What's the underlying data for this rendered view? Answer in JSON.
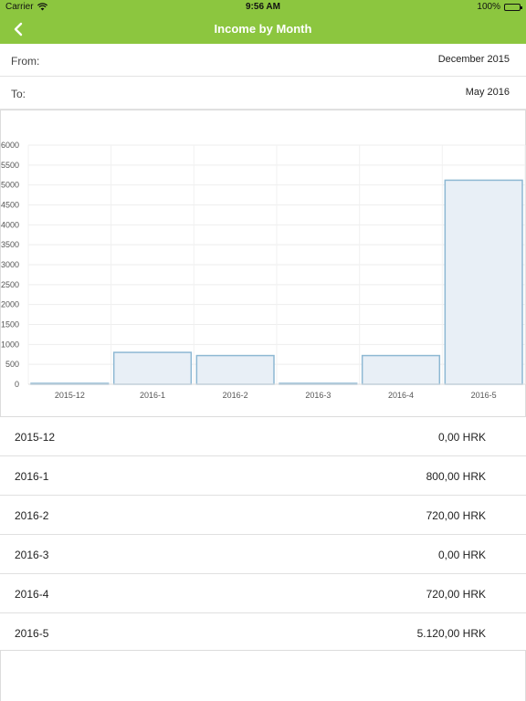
{
  "status_bar": {
    "carrier": "Carrier",
    "time": "9:56 AM",
    "battery": "100%"
  },
  "nav": {
    "title": "Income by Month",
    "back_icon": "chevron-left-icon"
  },
  "filters": {
    "from_label": "From:",
    "from_value": "December 2015",
    "to_label": "To:",
    "to_value": "May 2016"
  },
  "chart_data": {
    "type": "bar",
    "categories": [
      "2015-12",
      "2016-1",
      "2016-2",
      "2016-3",
      "2016-4",
      "2016-5"
    ],
    "values": [
      0,
      800,
      720,
      0,
      720,
      5120
    ],
    "ylim": [
      0,
      6000
    ],
    "yticks": [
      0,
      500,
      1000,
      1500,
      2000,
      2500,
      3000,
      3500,
      4000,
      4500,
      5000,
      5500,
      6000
    ],
    "grid": true,
    "bar_fill": "#e8eff6",
    "bar_stroke": "#8db8d3"
  },
  "rows": [
    {
      "month": "2015-12",
      "amount": "0,00 HRK"
    },
    {
      "month": "2016-1",
      "amount": "800,00 HRK"
    },
    {
      "month": "2016-2",
      "amount": "720,00 HRK"
    },
    {
      "month": "2016-3",
      "amount": "0,00 HRK"
    },
    {
      "month": "2016-4",
      "amount": "720,00 HRK"
    },
    {
      "month": "2016-5",
      "amount": "5.120,00 HRK"
    }
  ],
  "colors": {
    "accent": "#8cc63f"
  }
}
